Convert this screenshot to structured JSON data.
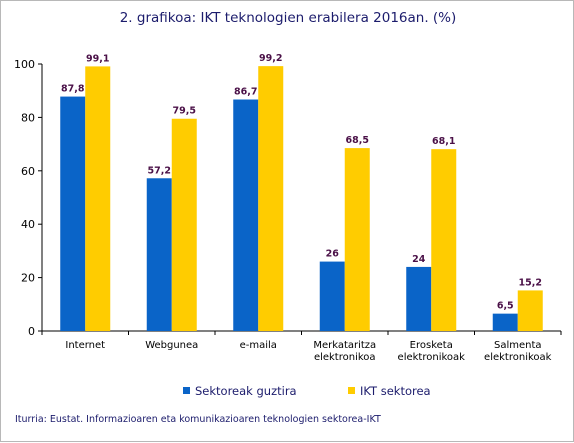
{
  "chart_data": {
    "type": "bar",
    "title": "2. grafikoa: IKT teknologien erabilera 2016an. (%)",
    "categories": [
      [
        "Internet"
      ],
      [
        "Webgunea"
      ],
      [
        "e-maila"
      ],
      [
        "Merkataritza",
        "elektronikoa"
      ],
      [
        "Erosketa",
        "elektronikoak"
      ],
      [
        "Salmenta",
        "elektronikoak"
      ]
    ],
    "series": [
      {
        "name": "Sektoreak guztira",
        "color": "#0a64c8",
        "values": [
          87.8,
          57.2,
          86.7,
          26,
          24,
          6.5
        ],
        "labels": [
          "87,8",
          "57,2",
          "86,7",
          "26",
          "24",
          "6,5"
        ]
      },
      {
        "name": "IKT sektorea",
        "color": "#ffcc00",
        "values": [
          99.1,
          79.5,
          99.2,
          68.5,
          68.1,
          15.2
        ],
        "labels": [
          "99,1",
          "79,5",
          "99,2",
          "68,5",
          "68,1",
          "15,2"
        ]
      }
    ],
    "ylim": [
      0,
      100
    ],
    "yticks": [
      0,
      20,
      40,
      60,
      80,
      100
    ],
    "xlabel": "",
    "ylabel": "",
    "grid": false,
    "legend_position": "bottom"
  },
  "footer": {
    "source": "Iturria: Eustat. Informazioaren eta komunikazioaren teknologien sektorea-IKT"
  }
}
